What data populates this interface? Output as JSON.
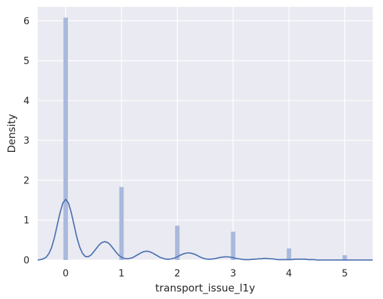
{
  "chart_data": {
    "type": "bar",
    "subtype": "histogram-with-kde",
    "xlabel": "transport_issue_l1y",
    "ylabel": "Density",
    "xlim": [
      -0.5,
      5.5
    ],
    "ylim": [
      0,
      6.35
    ],
    "x_ticks": [
      "0",
      "1",
      "2",
      "3",
      "4",
      "5"
    ],
    "y_ticks": [
      "0",
      "1",
      "2",
      "3",
      "4",
      "5",
      "6"
    ],
    "grid": true,
    "bins": [
      {
        "x": 0,
        "density": 6.08
      },
      {
        "x": 1,
        "density": 1.83
      },
      {
        "x": 2,
        "density": 0.86
      },
      {
        "x": 3,
        "density": 0.71
      },
      {
        "x": 4,
        "density": 0.29
      },
      {
        "x": 5,
        "density": 0.12
      }
    ],
    "kde": {
      "x": [
        -0.5,
        -0.45,
        -0.4,
        -0.35,
        -0.3,
        -0.25,
        -0.2,
        -0.15,
        -0.1,
        -0.05,
        0,
        0.05,
        0.1,
        0.15,
        0.2,
        0.25,
        0.3,
        0.35,
        0.4,
        0.45,
        0.5,
        0.55,
        0.6,
        0.65,
        0.7,
        0.75,
        0.8,
        0.85,
        0.9,
        0.95,
        1,
        1.05,
        1.1,
        1.15,
        1.2,
        1.25,
        1.3,
        1.35,
        1.4,
        1.45,
        1.5,
        1.55,
        1.6,
        1.65,
        1.7,
        1.75,
        1.8,
        1.85,
        1.9,
        1.95,
        2,
        2.05,
        2.1,
        2.15,
        2.2,
        2.25,
        2.3,
        2.35,
        2.4,
        2.45,
        2.5,
        2.55,
        2.6,
        2.65,
        2.7,
        2.75,
        2.8,
        2.85,
        2.9,
        2.95,
        3,
        3.05,
        3.1,
        3.15,
        3.2,
        3.25,
        3.3,
        3.35,
        3.4,
        3.45,
        3.5,
        3.55,
        3.6,
        3.65,
        3.7,
        3.75,
        3.8,
        3.85,
        3.9,
        3.95,
        4,
        4.05,
        4.1,
        4.15,
        4.2,
        4.25,
        4.3,
        4.35,
        4.4,
        4.45,
        4.5,
        4.55,
        4.6,
        4.65,
        4.7,
        4.75,
        4.8,
        4.85,
        4.9,
        4.95,
        5,
        5.05,
        5.1,
        5.15,
        5.2,
        5.25,
        5.3,
        5.35,
        5.4,
        5.45,
        5.5
      ],
      "y": [
        0.0,
        0.01,
        0.03,
        0.07,
        0.16,
        0.32,
        0.57,
        0.88,
        1.19,
        1.43,
        1.52,
        1.43,
        1.19,
        0.88,
        0.57,
        0.33,
        0.17,
        0.09,
        0.08,
        0.12,
        0.2,
        0.29,
        0.38,
        0.44,
        0.46,
        0.44,
        0.38,
        0.29,
        0.2,
        0.12,
        0.07,
        0.04,
        0.03,
        0.04,
        0.06,
        0.1,
        0.14,
        0.18,
        0.21,
        0.22,
        0.21,
        0.18,
        0.14,
        0.1,
        0.06,
        0.04,
        0.02,
        0.02,
        0.03,
        0.05,
        0.08,
        0.12,
        0.15,
        0.17,
        0.18,
        0.17,
        0.15,
        0.12,
        0.08,
        0.05,
        0.03,
        0.02,
        0.02,
        0.03,
        0.04,
        0.06,
        0.07,
        0.08,
        0.08,
        0.07,
        0.06,
        0.04,
        0.03,
        0.02,
        0.01,
        0.01,
        0.01,
        0.02,
        0.02,
        0.03,
        0.03,
        0.04,
        0.04,
        0.03,
        0.03,
        0.02,
        0.01,
        0.01,
        0.01,
        0.01,
        0.01,
        0.01,
        0.02,
        0.02,
        0.02,
        0.02,
        0.02,
        0.01,
        0.01,
        0.01,
        0.0,
        0.0,
        0.0,
        0.0,
        0.0,
        0.0,
        0.0,
        0.0,
        0.0,
        0.0,
        0.0,
        0.0,
        0.0,
        0.0,
        0.0,
        0.0,
        0.0,
        0.0,
        0.0,
        0.0,
        0.0
      ]
    },
    "colors": {
      "background": "#eaeaf2",
      "grid": "#ffffff",
      "bars": "#a9b9dc",
      "kde_line": "#4c72b0",
      "text": "#262626"
    }
  }
}
